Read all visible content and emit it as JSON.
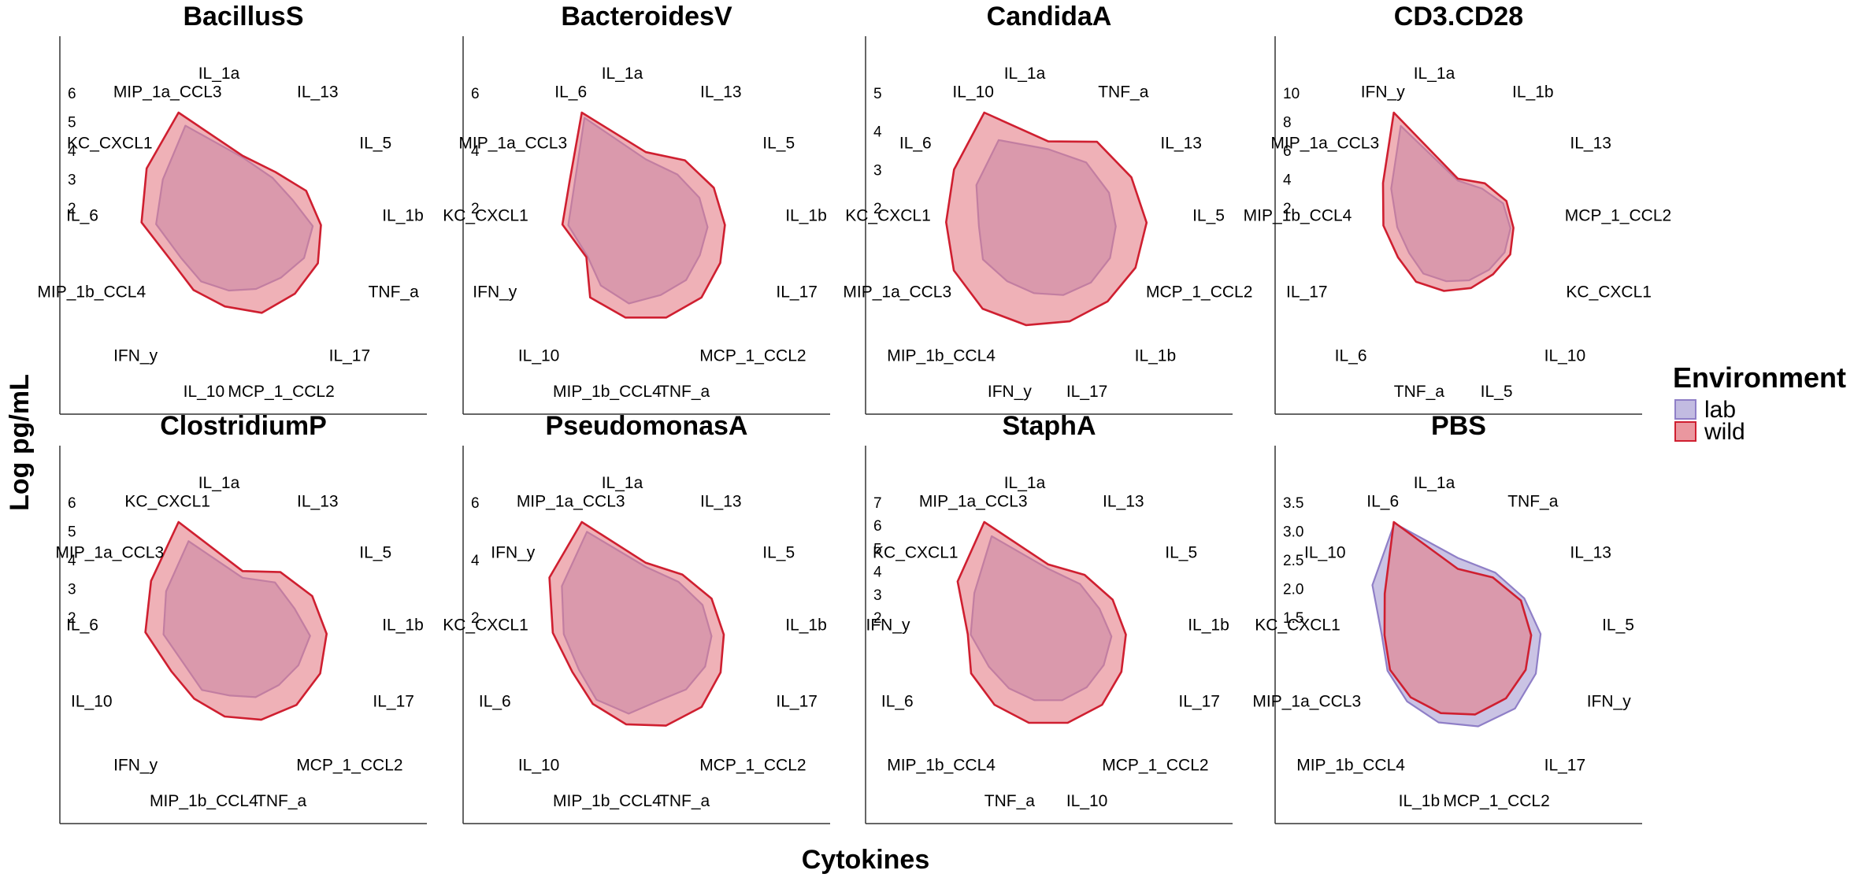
{
  "chart_data": {
    "type": "radar",
    "xlabel": "Cytokines",
    "ylabel": "Log pg/mL",
    "legend": {
      "title": "Environment",
      "position": "right",
      "items": [
        {
          "name": "lab",
          "color": "#9e8fcf"
        },
        {
          "name": "wild",
          "color": "#e0626f"
        }
      ]
    },
    "colors": {
      "lab_fill": "#b3aad9",
      "lab_stroke": "#8f7fc7",
      "wild_fill": "#e57d87",
      "wild_stroke": "#cf1f30"
    },
    "panels": [
      {
        "title": "BacillusS",
        "categories": [
          "IL_1a",
          "IL_13",
          "IL_5",
          "IL_1b",
          "TNF_a",
          "IL_17",
          "MCP_1_CCL2",
          "IL_10",
          "IFN_y",
          "MIP_1b_CCL4",
          "IL_6",
          "KC_CXCL1",
          "MIP_1a_CCL3"
        ],
        "yticks": [
          "2",
          "3",
          "4",
          "5",
          "6"
        ],
        "series": [
          {
            "name": "lab",
            "values": [
              2.7,
              1.9,
              1.7,
              2.3,
              2.0,
              1.5,
              1.4,
              1.5,
              1.8,
              2.0,
              3.3,
              3.9,
              5.5
            ]
          },
          {
            "name": "wild",
            "values": [
              2.8,
              2.3,
              2.7,
              2.8,
              2.9,
              2.8,
              2.9,
              2.5,
              2.5,
              2.6,
              4.2,
              5.1,
              6.4
            ]
          }
        ]
      },
      {
        "title": "BacteroidesV",
        "categories": [
          "IL_1a",
          "IL_13",
          "IL_5",
          "IL_1b",
          "IL_17",
          "MCP_1_CCL2",
          "TNF_a",
          "MIP_1b_CCL4",
          "IL_10",
          "IFN_y",
          "KC_CXCL1",
          "MIP_1a_CCL3",
          "IL_6"
        ],
        "yticks": [
          "2",
          "4",
          "6"
        ],
        "series": [
          {
            "name": "lab",
            "values": [
              2.9,
              2.4,
              2.2,
              2.0,
              1.7,
              1.9,
              2.0,
              2.6,
              2.4,
              2.0,
              3.1,
              3.7,
              6.8
            ]
          },
          {
            "name": "wild",
            "values": [
              3.4,
              3.5,
              3.4,
              3.2,
              3.2,
              3.5,
              3.6,
              3.6,
              3.5,
              2.1,
              3.5,
              4.1,
              7.2
            ]
          }
        ]
      },
      {
        "title": "CandidaA",
        "categories": [
          "IL_1a",
          "TNF_a",
          "IL_13",
          "IL_5",
          "MCP_1_CCL2",
          "IL_1b",
          "IL_17",
          "IFN_y",
          "MIP_1b_CCL4",
          "MIP_1a_CCL3",
          "KC_CXCL1",
          "IL_6",
          "IL_10"
        ],
        "yticks": [
          "2",
          "3",
          "4",
          "5"
        ],
        "series": [
          {
            "name": "lab",
            "values": [
              2.7,
              2.5,
              2.1,
              1.8,
              1.7,
              1.6,
              1.5,
              1.4,
              1.5,
              1.9,
              1.9,
              2.8,
              3.8
            ]
          },
          {
            "name": "wild",
            "values": [
              3.1,
              3.7,
              3.5,
              3.4,
              3.1,
              2.9,
              2.9,
              3.1,
              3.4,
              3.5,
              3.6,
              4.2,
              5.4
            ]
          }
        ]
      },
      {
        "title": "CD3.CD28",
        "categories": [
          "IL_1a",
          "IL_1b",
          "IL_13",
          "MCP_1_CCL2",
          "KC_CXCL1",
          "IL_10",
          "IL_5",
          "TNF_a",
          "IL_6",
          "IL_17",
          "MIP_1b_CCL4",
          "MIP_1a_CCL3",
          "IFN_y"
        ],
        "yticks": [
          "2",
          "4",
          "6",
          "8",
          "10"
        ],
        "series": [
          {
            "name": "lab",
            "values": [
              2.1,
              1.9,
              2.2,
              2.0,
              1.7,
              1.4,
              1.4,
              1.5,
              1.9,
              1.9,
              2.8,
              4.8,
              9.0
            ]
          },
          {
            "name": "wild",
            "values": [
              2.3,
              2.5,
              2.6,
              2.3,
              2.3,
              2.0,
              2.2,
              2.5,
              3.0,
              3.1,
              4.2,
              5.8,
              10.5
            ]
          }
        ]
      },
      {
        "title": "ClostridiumP",
        "categories": [
          "IL_1a",
          "IL_13",
          "IL_5",
          "IL_1b",
          "IL_17",
          "MCP_1_CCL2",
          "TNF_a",
          "MIP_1b_CCL4",
          "IFN_y",
          "IL_10",
          "IL_6",
          "MIP_1a_CCL3",
          "KC_CXCL1"
        ],
        "yticks": [
          "2",
          "3",
          "4",
          "5",
          "6"
        ],
        "series": [
          {
            "name": "lab",
            "values": [
              2.0,
              2.2,
              1.8,
              2.1,
              1.6,
              1.3,
              1.3,
              1.2,
              1.7,
              1.7,
              2.8,
              3.6,
              5.0
            ]
          },
          {
            "name": "wild",
            "values": [
              2.4,
              2.9,
              3.1,
              3.1,
              3.0,
              2.9,
              2.7,
              2.5,
              2.4,
              2.6,
              3.9,
              4.7,
              6.3
            ]
          }
        ]
      },
      {
        "title": "PseudomonasA",
        "categories": [
          "IL_1a",
          "IL_13",
          "IL_5",
          "IL_1b",
          "IL_17",
          "MCP_1_CCL2",
          "TNF_a",
          "MIP_1b_CCL4",
          "IL_10",
          "IL_6",
          "KC_CXCL1",
          "IFN_y",
          "MIP_1a_CCL3"
        ],
        "yticks": [
          "2",
          "4",
          "6"
        ],
        "series": [
          {
            "name": "lab",
            "values": [
              3.2,
              2.7,
              2.6,
              2.4,
              2.2,
              2.0,
              1.8,
              2.8,
              3.0,
              2.8,
              3.6,
              5.0,
              6.8
            ]
          },
          {
            "name": "wild",
            "values": [
              3.5,
              3.3,
              3.4,
              3.3,
              3.4,
              3.7,
              3.7,
              3.6,
              3.4,
              3.3,
              4.4,
              6.1,
              7.6
            ]
          }
        ]
      },
      {
        "title": "StaphA",
        "categories": [
          "IL_1a",
          "IL_13",
          "IL_5",
          "IL_1b",
          "IL_17",
          "MCP_1_CCL2",
          "IL_10",
          "TNF_a",
          "MIP_1b_CCL4",
          "IL_6",
          "IFN_y",
          "KC_CXCL1",
          "MIP_1a_CCL3"
        ],
        "yticks": [
          "2",
          "3",
          "4",
          "5",
          "6",
          "7"
        ],
        "series": [
          {
            "name": "lab",
            "values": [
              2.9,
              2.4,
              2.0,
              2.1,
              1.8,
              1.7,
              1.7,
              1.7,
              1.8,
              2.1,
              3.1,
              3.9,
              6.1
            ]
          },
          {
            "name": "wild",
            "values": [
              3.2,
              3.1,
              3.1,
              3.1,
              3.1,
              3.3,
              3.3,
              3.3,
              3.3,
              3.4,
              3.3,
              5.3,
              7.2
            ]
          }
        ]
      },
      {
        "title": "PBS",
        "categories": [
          "IL_1a",
          "TNF_a",
          "IL_13",
          "IL_5",
          "IFN_y",
          "IL_17",
          "MCP_1_CCL2",
          "IL_1b",
          "MIP_1b_CCL4",
          "MIP_1a_CCL3",
          "KC_CXCL1",
          "IL_10",
          "IL_6"
        ],
        "yticks": [
          "1.5",
          "2.0",
          "2.5",
          "3.0",
          "3.5"
        ],
        "series": [
          {
            "name": "lab",
            "values": [
              1.95,
              1.75,
              1.75,
              1.85,
              1.85,
              1.95,
              1.9,
              1.75,
              1.6,
              1.55,
              1.6,
              2.6,
              3.8
            ]
          },
          {
            "name": "wild",
            "values": [
              1.55,
              1.55,
              1.6,
              1.5,
              1.45,
              1.45,
              1.45,
              1.4,
              1.4,
              1.45,
              1.5,
              2.05,
              3.85
            ]
          }
        ]
      }
    ]
  }
}
